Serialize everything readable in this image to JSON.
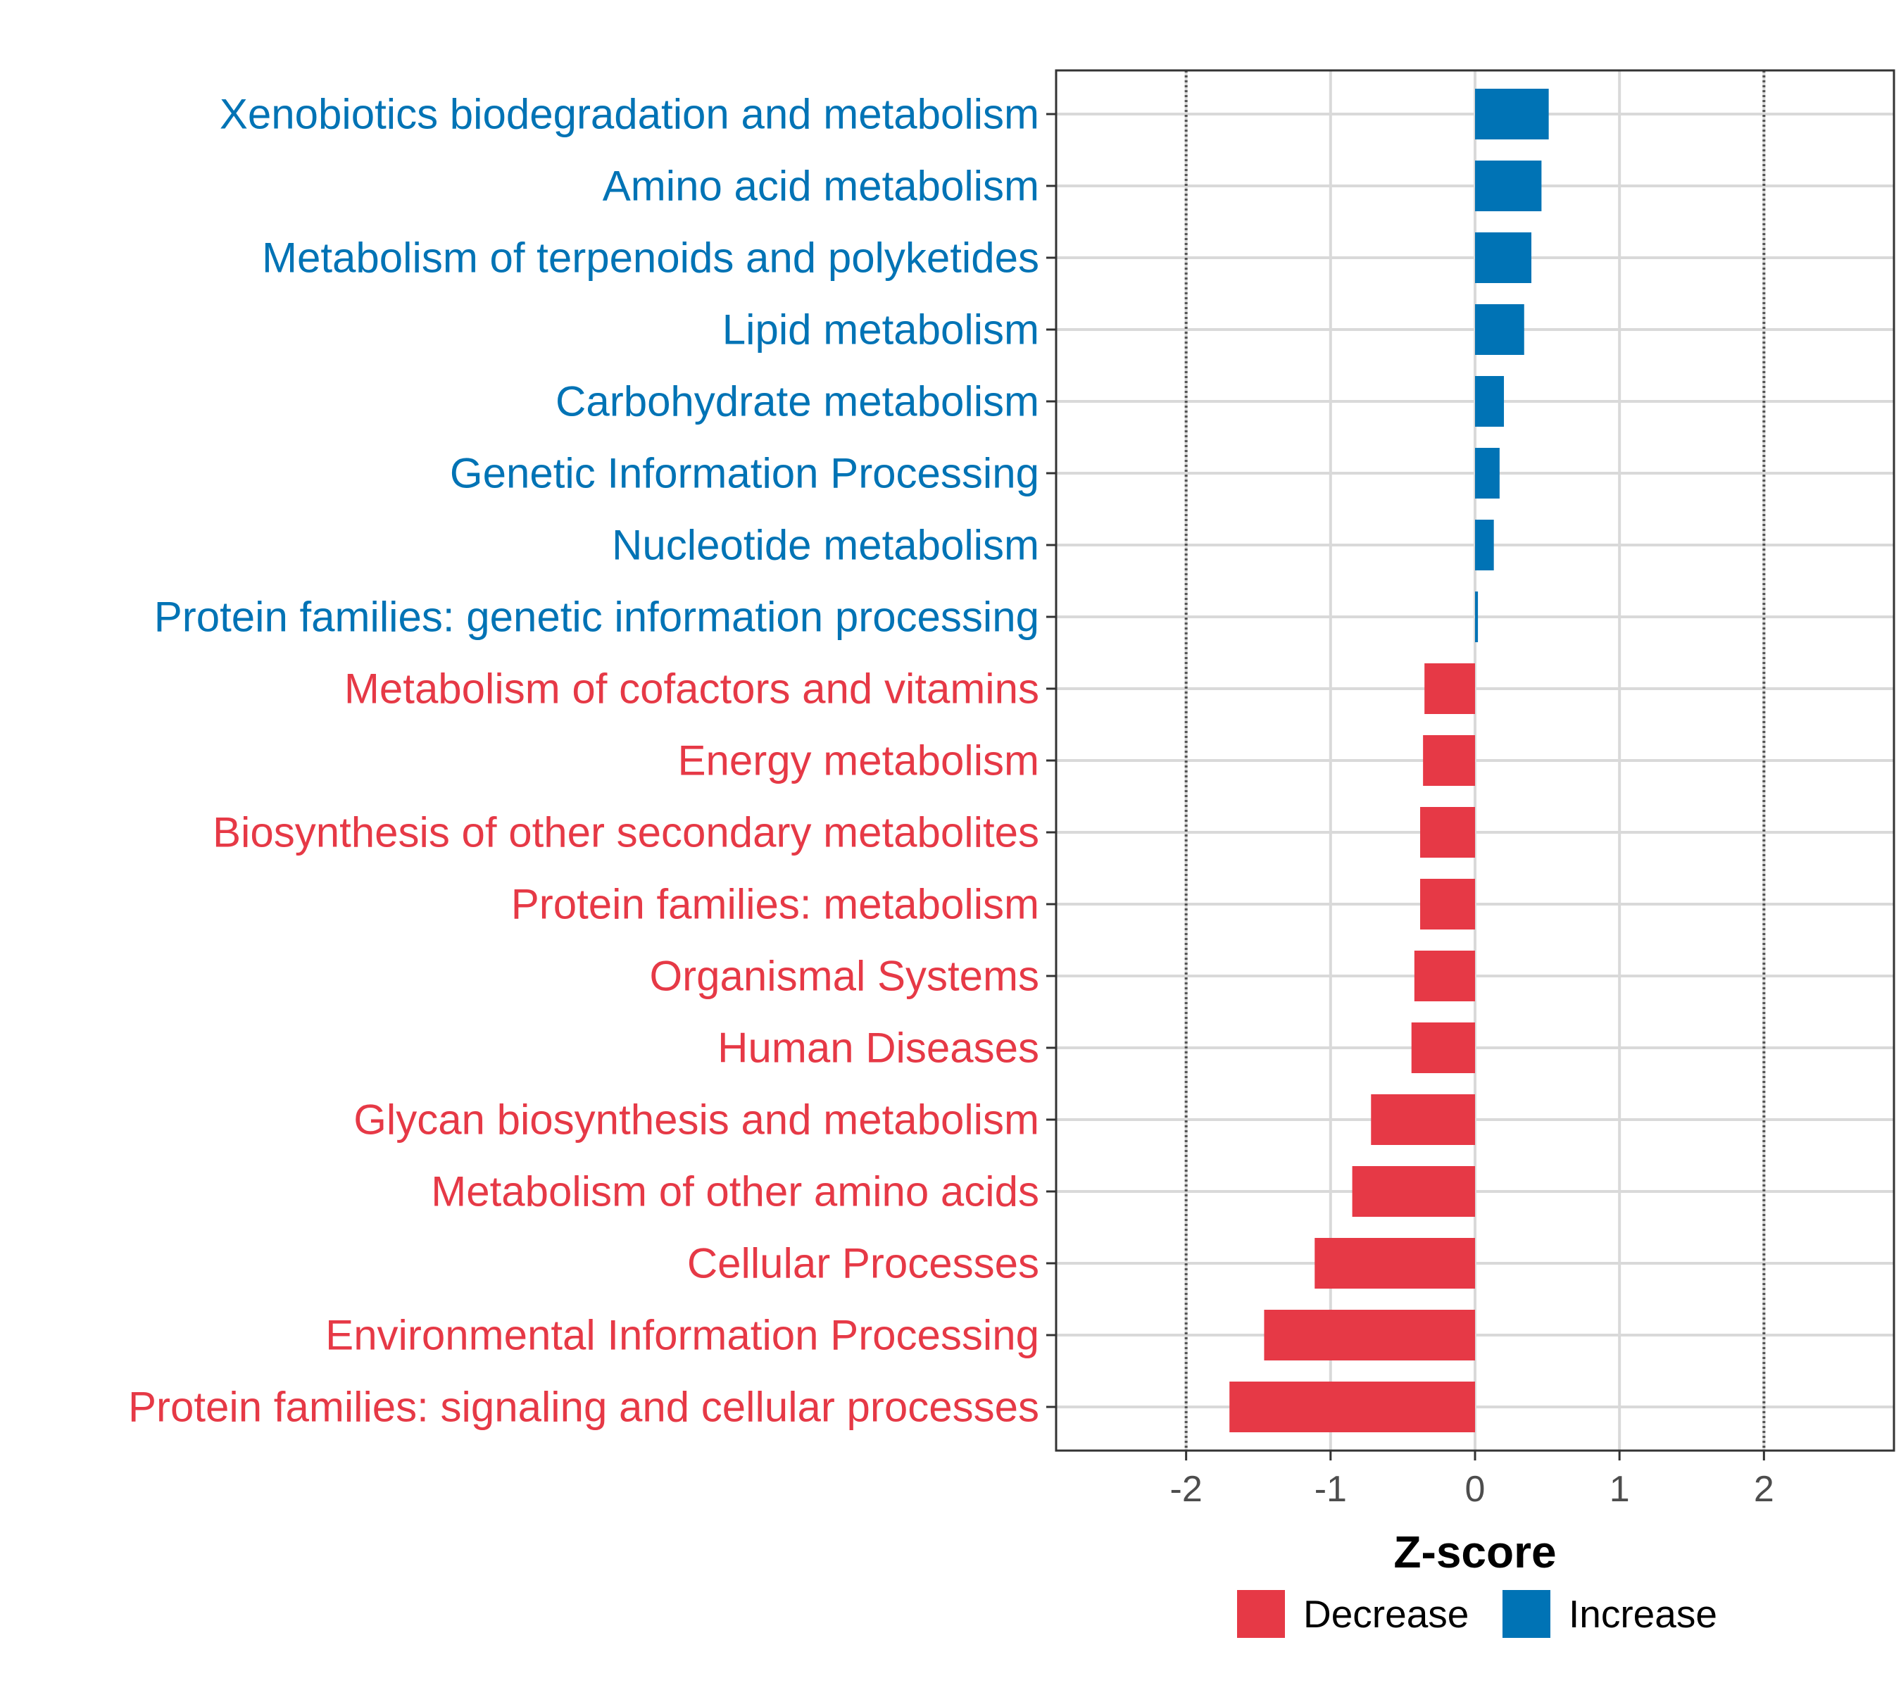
{
  "chart_data": {
    "type": "bar",
    "orientation": "horizontal",
    "xlabel": "Z-score",
    "xlim": [
      -2.9,
      2.9
    ],
    "x_ticks": [
      -2,
      -1,
      0,
      1,
      2
    ],
    "x_tick_labels": [
      "-2",
      "-1",
      "0",
      "1",
      "2"
    ],
    "reference_lines": [
      -2,
      2
    ],
    "grid": true,
    "categories": [
      "Xenobiotics biodegradation and metabolism",
      "Amino acid metabolism",
      "Metabolism of terpenoids and polyketides",
      "Lipid metabolism",
      "Carbohydrate metabolism",
      "Genetic Information Processing",
      "Nucleotide metabolism",
      "Protein families: genetic information processing",
      "Metabolism of cofactors and vitamins",
      "Energy metabolism",
      "Biosynthesis of other secondary metabolites",
      "Protein families: metabolism",
      "Organismal Systems",
      "Human Diseases",
      "Glycan biosynthesis and metabolism",
      "Metabolism of other amino acids",
      "Cellular Processes",
      "Environmental Information Processing",
      "Protein families: signaling and cellular processes"
    ],
    "values": [
      0.51,
      0.46,
      0.39,
      0.34,
      0.2,
      0.17,
      0.13,
      0.02,
      -0.35,
      -0.36,
      -0.38,
      -0.38,
      -0.42,
      -0.44,
      -0.72,
      -0.85,
      -1.11,
      -1.46,
      -1.7
    ],
    "groups": [
      "Increase",
      "Increase",
      "Increase",
      "Increase",
      "Increase",
      "Increase",
      "Increase",
      "Increase",
      "Decrease",
      "Decrease",
      "Decrease",
      "Decrease",
      "Decrease",
      "Decrease",
      "Decrease",
      "Decrease",
      "Decrease",
      "Decrease",
      "Decrease"
    ],
    "legend": [
      {
        "label": "Decrease",
        "color": "#E63946"
      },
      {
        "label": "Increase",
        "color": "#0073B5"
      }
    ],
    "legend_position": "bottom"
  }
}
